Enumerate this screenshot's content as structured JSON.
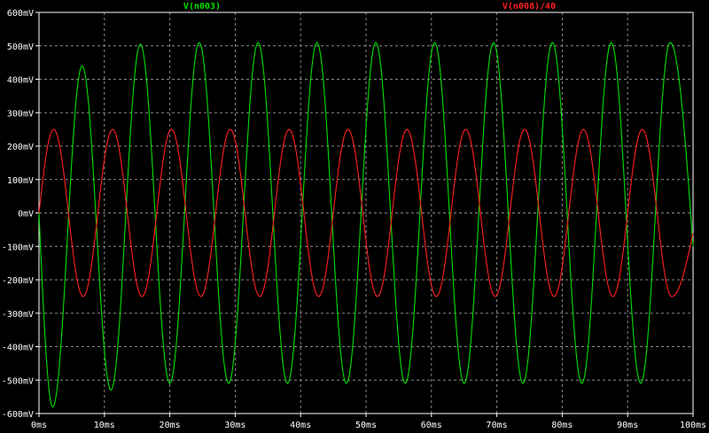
{
  "window": {
    "background": "#000000",
    "grid_color": "#8a8a8a",
    "tick_color": "#ffffff"
  },
  "chart_data": {
    "type": "line",
    "title": "",
    "xlabel": "",
    "ylabel": "",
    "xlim": [
      0,
      100
    ],
    "ylim": [
      -600,
      600
    ],
    "x_unit": "ms",
    "y_unit": "mV",
    "grid": true,
    "x_ticks": [
      "0ms",
      "10ms",
      "20ms",
      "30ms",
      "40ms",
      "50ms",
      "60ms",
      "70ms",
      "80ms",
      "90ms",
      "100ms"
    ],
    "y_ticks": [
      "600mV",
      "500mV",
      "400mV",
      "300mV",
      "200mV",
      "100mV",
      "0mV",
      "-100mV",
      "-200mV",
      "-300mV",
      "-400mV",
      "-500mV",
      "-600mV"
    ],
    "series": [
      {
        "name": "V(n003)",
        "color": "#00e000",
        "extrema": [
          [
            2.1,
            -580
          ],
          [
            6.6,
            440
          ],
          [
            11.0,
            -530
          ],
          [
            15.5,
            505
          ],
          [
            20.0,
            -510
          ],
          [
            24.5,
            510
          ],
          [
            29.0,
            -510
          ],
          [
            33.5,
            510
          ],
          [
            38.0,
            -510
          ],
          [
            42.5,
            510
          ],
          [
            47.0,
            -510
          ],
          [
            51.5,
            510
          ],
          [
            56.0,
            -510
          ],
          [
            60.5,
            510
          ],
          [
            65.0,
            -510
          ],
          [
            69.5,
            510
          ],
          [
            74.0,
            -510
          ],
          [
            78.5,
            510
          ],
          [
            83.0,
            -510
          ],
          [
            87.5,
            510
          ],
          [
            92.0,
            -510
          ],
          [
            96.5,
            510
          ]
        ],
        "start": [
          0,
          0
        ],
        "end": [
          100,
          -100
        ]
      },
      {
        "name": "V(n008)/40",
        "color": "#ff2020",
        "amplitude": 250,
        "period_ms": 9.0,
        "phase_note": "sine starting at 0 rising",
        "extrema": [
          [
            2.25,
            250
          ],
          [
            6.75,
            -250
          ],
          [
            11.25,
            250
          ],
          [
            15.75,
            -250
          ],
          [
            20.25,
            250
          ],
          [
            24.75,
            -250
          ],
          [
            29.25,
            250
          ],
          [
            33.75,
            -250
          ],
          [
            38.25,
            250
          ],
          [
            42.75,
            -250
          ],
          [
            47.25,
            250
          ],
          [
            51.75,
            -250
          ],
          [
            56.25,
            250
          ],
          [
            60.75,
            -250
          ],
          [
            65.25,
            250
          ],
          [
            69.75,
            -250
          ],
          [
            74.25,
            250
          ],
          [
            78.75,
            -250
          ],
          [
            83.25,
            250
          ],
          [
            87.75,
            -250
          ],
          [
            92.25,
            250
          ],
          [
            96.75,
            -250
          ]
        ],
        "start": [
          0,
          0
        ],
        "end": [
          100,
          -60
        ]
      }
    ]
  }
}
